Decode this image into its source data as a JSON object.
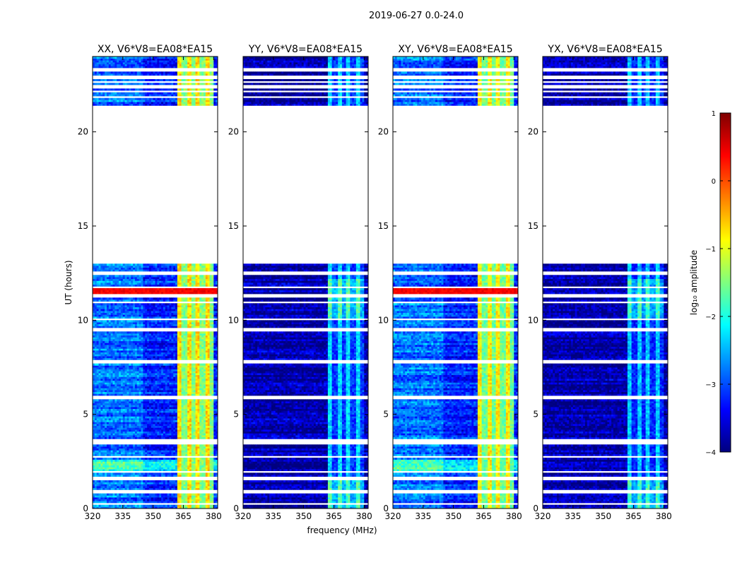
{
  "chart_data": {
    "type": "heatmap",
    "title": "2019-06-27 0.0-24.0",
    "xlabel": "frequency (MHz)",
    "ylabel": "UT (hours)",
    "xlim": [
      320,
      382
    ],
    "ylim": [
      0,
      24
    ],
    "xticks": [
      320,
      335,
      350,
      365,
      380
    ],
    "yticks": [
      0,
      5,
      10,
      15,
      20
    ],
    "colorbar": {
      "label": "log₁₀ amplitude",
      "range": [
        -4,
        1
      ],
      "ticks": [
        1,
        0,
        -1,
        -2,
        -3,
        -4
      ],
      "tick_labels": [
        "1",
        "0",
        "−1",
        "−2",
        "−3",
        "−4"
      ],
      "cmap": "jet",
      "colors": [
        "#00007f",
        "#0000ff",
        "#007fff",
        "#00ffff",
        "#7fff7f",
        "#ffff00",
        "#ff7f00",
        "#ff0000",
        "#7f0000"
      ]
    },
    "panels": [
      {
        "title": "XX, V6*V8=EA08*EA15",
        "base_level": -3.2,
        "band_level": -1.0,
        "hot_rows": true
      },
      {
        "title": "YY, V6*V8=EA08*EA15",
        "base_level": -3.8,
        "band_level": -2.6,
        "hot_rows": false
      },
      {
        "title": "XY, V6*V8=EA08*EA15",
        "base_level": -3.2,
        "band_level": -1.1,
        "hot_rows": true
      },
      {
        "title": "YX, V6*V8=EA08*EA15",
        "base_level": -3.8,
        "band_level": -2.7,
        "hot_rows": false
      }
    ],
    "data_gaps_hours": [
      [
        13.0,
        21.4
      ]
    ],
    "rfi_band_mhz": [
      362,
      380
    ]
  }
}
